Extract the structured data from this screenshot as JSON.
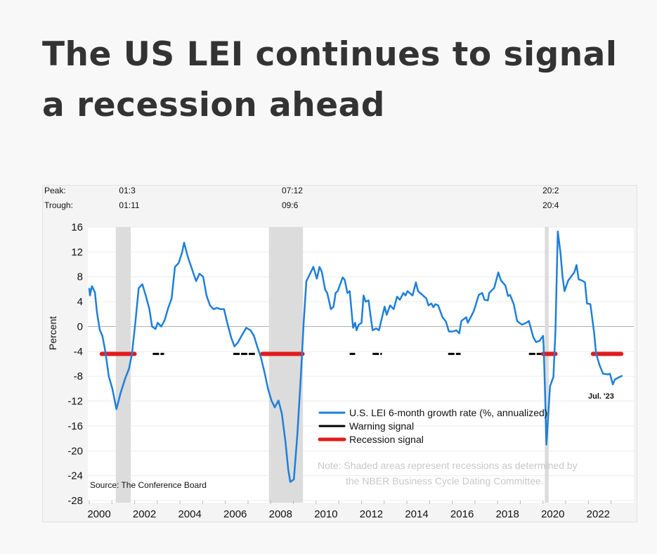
{
  "title": "The US LEI continues to signal a recession ahead",
  "chart_data": {
    "type": "line",
    "ylabel": "Percent",
    "xlim": [
      2000,
      2023.6
    ],
    "ylim": [
      -28,
      16
    ],
    "yticks": [
      16,
      12,
      8,
      4,
      0,
      -4,
      -8,
      -12,
      -16,
      -20,
      -24,
      -28
    ],
    "xticks": [
      2000,
      2002,
      2004,
      2006,
      2008,
      2010,
      2012,
      2014,
      2016,
      2018,
      2020,
      2022
    ],
    "header_labels": {
      "peak": "Peak:",
      "trough": "Trough:"
    },
    "recessions": [
      {
        "start": 2001.17,
        "end": 2001.83,
        "peak": "01:3",
        "trough": "01:11"
      },
      {
        "start": 2007.92,
        "end": 2009.42,
        "peak": "07:12",
        "trough": "09:6"
      },
      {
        "start": 2020.08,
        "end": 2020.25,
        "peak": "20:2",
        "trough": "20:4"
      }
    ],
    "series": [
      {
        "name": "U.S. LEI 6-month growth rate (%, annualized)",
        "color": "#1f7fd8",
        "points": [
          [
            2000.0,
            6.2
          ],
          [
            2000.03,
            5
          ],
          [
            2000.12,
            6.5
          ],
          [
            2000.25,
            5.5
          ],
          [
            2000.34,
            2.3
          ],
          [
            2000.46,
            -0.5
          ],
          [
            2000.58,
            -1.5
          ],
          [
            2000.71,
            -4
          ],
          [
            2000.86,
            -8
          ],
          [
            2001.02,
            -10
          ],
          [
            2001.2,
            -13.3
          ],
          [
            2001.38,
            -10.7
          ],
          [
            2001.57,
            -8.5
          ],
          [
            2001.75,
            -6.8
          ],
          [
            2001.88,
            -4.5
          ],
          [
            2002.03,
            0.5
          ],
          [
            2002.18,
            6.2
          ],
          [
            2002.34,
            6.8
          ],
          [
            2002.49,
            5
          ],
          [
            2002.65,
            2.8
          ],
          [
            2002.77,
            0
          ],
          [
            2002.92,
            -0.4
          ],
          [
            2003.02,
            0.6
          ],
          [
            2003.17,
            0
          ],
          [
            2003.32,
            1
          ],
          [
            2003.48,
            3
          ],
          [
            2003.63,
            4.5
          ],
          [
            2003.78,
            9.6
          ],
          [
            2003.94,
            10.2
          ],
          [
            2004.09,
            11.9
          ],
          [
            2004.18,
            13.5
          ],
          [
            2004.34,
            11.3
          ],
          [
            2004.55,
            9
          ],
          [
            2004.71,
            7.3
          ],
          [
            2004.86,
            8.5
          ],
          [
            2005.02,
            8
          ],
          [
            2005.17,
            5
          ],
          [
            2005.32,
            3.4
          ],
          [
            2005.48,
            2.8
          ],
          [
            2005.63,
            3
          ],
          [
            2005.78,
            2.8
          ],
          [
            2005.94,
            2.8
          ],
          [
            2006.09,
            0.5
          ],
          [
            2006.25,
            -1.7
          ],
          [
            2006.4,
            -3.2
          ],
          [
            2006.55,
            -2.6
          ],
          [
            2006.71,
            -1.5
          ],
          [
            2006.92,
            -0.2
          ],
          [
            2007.11,
            -0.6
          ],
          [
            2007.26,
            -1.5
          ],
          [
            2007.42,
            -3.4
          ],
          [
            2007.57,
            -5
          ],
          [
            2007.72,
            -7.3
          ],
          [
            2007.88,
            -10
          ],
          [
            2008.03,
            -11.9
          ],
          [
            2008.18,
            -13
          ],
          [
            2008.34,
            -11.9
          ],
          [
            2008.49,
            -14
          ],
          [
            2008.65,
            -18.6
          ],
          [
            2008.77,
            -23
          ],
          [
            2008.86,
            -25
          ],
          [
            2009.02,
            -24.6
          ],
          [
            2009.17,
            -17.5
          ],
          [
            2009.32,
            -8.5
          ],
          [
            2009.45,
            0.5
          ],
          [
            2009.57,
            7.3
          ],
          [
            2009.88,
            9.6
          ],
          [
            2010.03,
            7.7
          ],
          [
            2010.15,
            9.6
          ],
          [
            2010.25,
            8.8
          ],
          [
            2010.4,
            5.9
          ],
          [
            2010.49,
            5.4
          ],
          [
            2010.65,
            2.8
          ],
          [
            2010.77,
            3.2
          ],
          [
            2010.86,
            5.4
          ],
          [
            2010.95,
            5.7
          ],
          [
            2011.17,
            7.9
          ],
          [
            2011.26,
            7.5
          ],
          [
            2011.38,
            5.4
          ],
          [
            2011.48,
            5.7
          ],
          [
            2011.63,
            -0.2
          ],
          [
            2011.72,
            0.6
          ],
          [
            2011.78,
            -0.6
          ],
          [
            2011.88,
            0.3
          ],
          [
            2012.0,
            0.6
          ],
          [
            2012.09,
            5
          ],
          [
            2012.18,
            4
          ],
          [
            2012.31,
            4.2
          ],
          [
            2012.4,
            1.7
          ],
          [
            2012.49,
            -0.6
          ],
          [
            2012.65,
            -0.3
          ],
          [
            2012.77,
            -0.6
          ],
          [
            2013.02,
            3.2
          ],
          [
            2013.11,
            1.9
          ],
          [
            2013.26,
            3.4
          ],
          [
            2013.42,
            2.8
          ],
          [
            2013.57,
            4.8
          ],
          [
            2013.69,
            4.3
          ],
          [
            2013.85,
            5.4
          ],
          [
            2013.94,
            5
          ],
          [
            2014.03,
            5.7
          ],
          [
            2014.25,
            5
          ],
          [
            2014.4,
            7.1
          ],
          [
            2014.49,
            5.7
          ],
          [
            2014.65,
            5.2
          ],
          [
            2014.86,
            4.5
          ],
          [
            2014.95,
            3.4
          ],
          [
            2015.08,
            3.7
          ],
          [
            2015.17,
            3.1
          ],
          [
            2015.26,
            3.6
          ],
          [
            2015.38,
            3.4
          ],
          [
            2015.57,
            1.5
          ],
          [
            2015.72,
            0.8
          ],
          [
            2015.85,
            -0.8
          ],
          [
            2016.03,
            -0.8
          ],
          [
            2016.18,
            -0.6
          ],
          [
            2016.31,
            -1.1
          ],
          [
            2016.4,
            0.9
          ],
          [
            2016.62,
            1.5
          ],
          [
            2016.68,
            0.6
          ],
          [
            2016.8,
            1.4
          ],
          [
            2016.95,
            2.5
          ],
          [
            2017.17,
            5.1
          ],
          [
            2017.32,
            5.4
          ],
          [
            2017.42,
            4.3
          ],
          [
            2017.57,
            4.2
          ],
          [
            2017.63,
            5.4
          ],
          [
            2017.85,
            6.2
          ],
          [
            2018.03,
            8.7
          ],
          [
            2018.15,
            7.4
          ],
          [
            2018.34,
            6.6
          ],
          [
            2018.46,
            4.9
          ],
          [
            2018.55,
            5.1
          ],
          [
            2018.71,
            3.6
          ],
          [
            2018.86,
            0.9
          ],
          [
            2018.95,
            0.6
          ],
          [
            2019.08,
            0.3
          ],
          [
            2019.26,
            0.6
          ],
          [
            2019.38,
            0.9
          ],
          [
            2019.57,
            -1.7
          ],
          [
            2019.69,
            -2.5
          ],
          [
            2019.85,
            -2.3
          ],
          [
            2020.0,
            -1.5
          ],
          [
            2020.03,
            -3.2
          ],
          [
            2020.09,
            -10.7
          ],
          [
            2020.15,
            -19
          ],
          [
            2020.31,
            -9.6
          ],
          [
            2020.46,
            -8.1
          ],
          [
            2020.55,
            -0.6
          ],
          [
            2020.65,
            15.3
          ],
          [
            2020.77,
            11.9
          ],
          [
            2020.86,
            8.1
          ],
          [
            2020.95,
            5.7
          ],
          [
            2021.11,
            7.4
          ],
          [
            2021.23,
            8
          ],
          [
            2021.38,
            8.7
          ],
          [
            2021.48,
            9.9
          ],
          [
            2021.57,
            7.6
          ],
          [
            2021.72,
            7.4
          ],
          [
            2021.85,
            7.1
          ],
          [
            2021.94,
            3.7
          ],
          [
            2022.09,
            3.6
          ],
          [
            2022.25,
            -0.9
          ],
          [
            2022.34,
            -4.3
          ],
          [
            2022.49,
            -6.2
          ],
          [
            2022.65,
            -7.6
          ],
          [
            2022.86,
            -7.7
          ],
          [
            2022.95,
            -7.6
          ],
          [
            2023.08,
            -9.3
          ],
          [
            2023.17,
            -8.5
          ],
          [
            2023.38,
            -8.1
          ],
          [
            2023.5,
            -7.9
          ]
        ]
      },
      {
        "name": "Warning signal",
        "color": "#000000",
        "level": -4.4,
        "segments": [
          [
            2000.5,
            2002.05
          ],
          [
            2002.8,
            2003.3
          ],
          [
            2006.35,
            2007.3
          ],
          [
            2011.48,
            2011.72
          ],
          [
            2012.49,
            2012.9
          ],
          [
            2015.82,
            2016.37
          ],
          [
            2019.38,
            2020.0
          ]
        ]
      },
      {
        "name": "Recession signal",
        "color": "#e31b1b",
        "level": -4.4,
        "segments": [
          [
            2000.55,
            2002.0
          ],
          [
            2007.63,
            2009.4
          ],
          [
            2020.0,
            2020.55
          ],
          [
            2022.2,
            2023.45
          ]
        ]
      }
    ],
    "end_label": "Jul. '23",
    "note_line1": "Note: Shaded areas represent recessions as determined by",
    "note_line2": "the NBER Business Cycle Dating Committee.",
    "source": "Source: The Conference Board",
    "legend_position": "center-bottom"
  }
}
